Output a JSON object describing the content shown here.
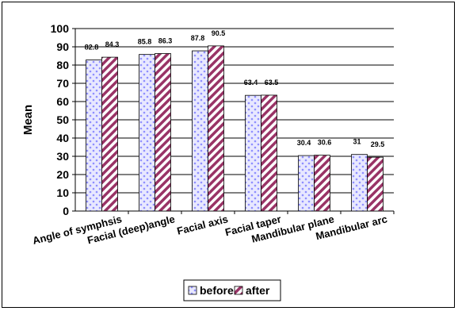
{
  "chart_data": {
    "type": "bar",
    "title": "",
    "ylabel": "Mean",
    "xlabel": "",
    "ylim": [
      0,
      100
    ],
    "ytick_step": 10,
    "grid": true,
    "legend_position": "bottom",
    "categories": [
      "Angle of symphsis",
      "Facial (deep)angle",
      "Facial axis",
      "Facial taper",
      "Mandibular plane",
      "Mandibular arc"
    ],
    "series": [
      {
        "name": "before",
        "values": [
          82.8,
          85.8,
          87.8,
          63.4,
          30.4,
          31
        ],
        "labels": [
          "82.8",
          "85.8",
          "87.8",
          "63.4",
          "30.4",
          "31"
        ],
        "color": "#9999ff",
        "pattern": "dotted"
      },
      {
        "name": "after",
        "values": [
          84.3,
          86.3,
          90.5,
          63.5,
          30.6,
          29.5
        ],
        "labels": [
          "84.3",
          "86.3",
          "90.5",
          "63.5",
          "30.6",
          "29.5"
        ],
        "color": "#993366",
        "pattern": "diagonal-stripes"
      }
    ]
  }
}
